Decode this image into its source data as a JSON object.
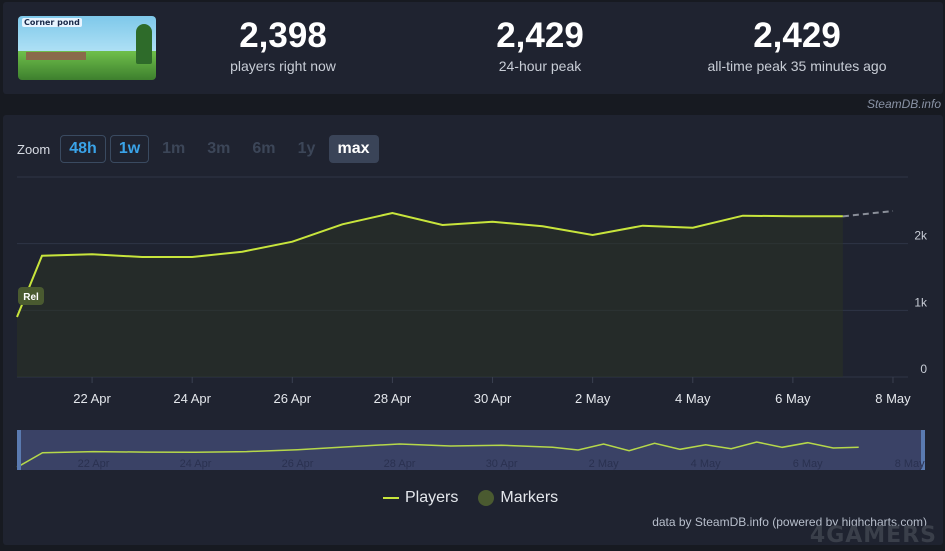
{
  "game": {
    "title_art": "Corner pond"
  },
  "stats": [
    {
      "value": "2,398",
      "label": "players right now"
    },
    {
      "value": "2,429",
      "label": "24-hour peak"
    },
    {
      "value": "2,429",
      "label": "all-time peak 35 minutes ago"
    }
  ],
  "watermark": "SteamDB.info",
  "zoom": {
    "label": "Zoom",
    "buttons": [
      {
        "label": "48h",
        "state": "enabled"
      },
      {
        "label": "1w",
        "state": "enabled"
      },
      {
        "label": "1m",
        "state": "disabled"
      },
      {
        "label": "3m",
        "state": "disabled"
      },
      {
        "label": "6m",
        "state": "disabled"
      },
      {
        "label": "1y",
        "state": "disabled"
      },
      {
        "label": "max",
        "state": "active"
      }
    ]
  },
  "chart_data": {
    "type": "line",
    "x_labels": [
      "22 Apr",
      "24 Apr",
      "26 Apr",
      "28 Apr",
      "30 Apr",
      "2 May",
      "4 May",
      "6 May",
      "8 May"
    ],
    "y_labels": [
      "0",
      "1k",
      "2k"
    ],
    "ylim": [
      0,
      3000
    ],
    "grid": true,
    "series": [
      {
        "name": "Players",
        "color": "#c8e53c",
        "x": [
          20.5,
          21,
          22,
          23,
          24,
          25,
          26,
          27,
          28,
          29,
          30,
          31,
          32,
          33,
          34,
          35,
          36,
          37
        ],
        "y": [
          900,
          1820,
          1840,
          1800,
          1800,
          1880,
          2030,
          2290,
          2460,
          2280,
          2330,
          2260,
          2130,
          2270,
          2240,
          2420,
          2410,
          2410
        ]
      }
    ],
    "projection": {
      "x": [
        37,
        38
      ],
      "y": [
        2410,
        2490
      ],
      "style": "dashed"
    },
    "marker": {
      "label": "Rel",
      "x": 20.5,
      "y": 1200
    },
    "navigator": {
      "x_labels": [
        "22 Apr",
        "24 Apr",
        "26 Apr",
        "28 Apr",
        "30 Apr",
        "2 May",
        "4 May",
        "6 May",
        "8 May"
      ]
    },
    "legend": {
      "placement": "bottom-center",
      "items": [
        "Players",
        "Markers"
      ]
    }
  },
  "credit": "data by SteamDB.info (powered by highcharts.com)",
  "brand": "4GAMERS"
}
